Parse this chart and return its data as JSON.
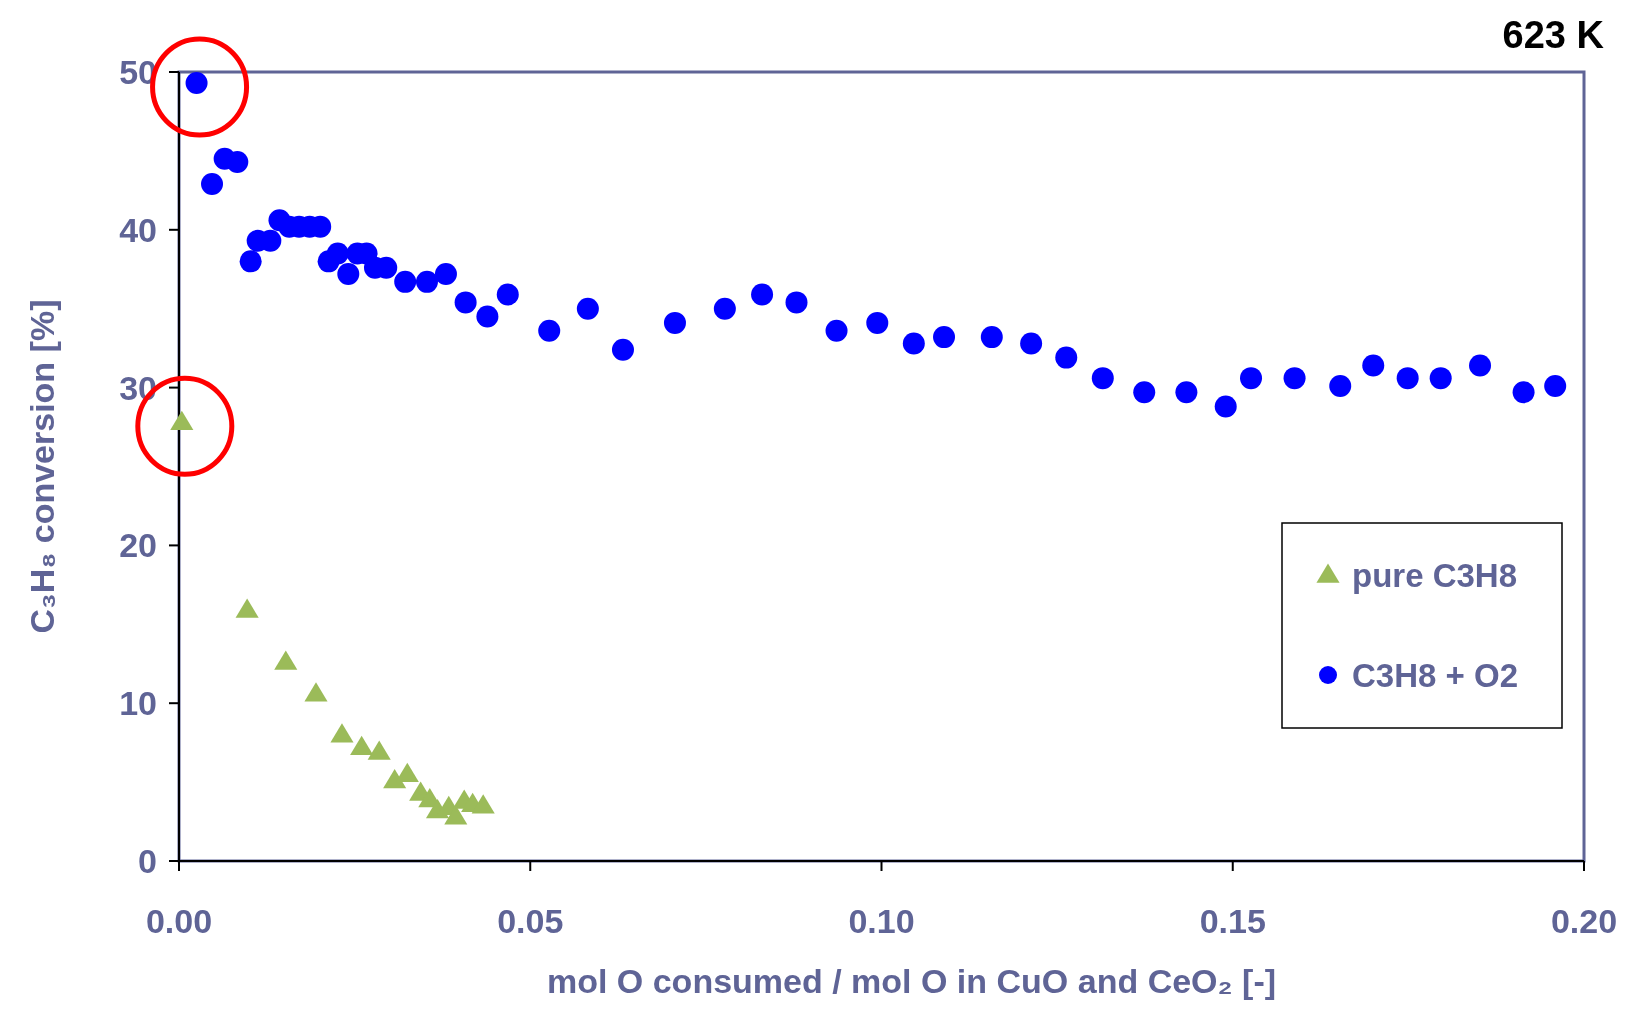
{
  "chart_data": {
    "type": "scatter",
    "title": "623 K",
    "xlabel": "mol O consumed  / mol O in CuO and CeO₂ [-]",
    "ylabel": "C₃H₈ conversion  [%]",
    "xlim": [
      0,
      0.2
    ],
    "xticks": [
      {
        "value": 0,
        "label": "0.00"
      },
      {
        "value": 0.05,
        "label": "0.05"
      },
      {
        "value": 0.1,
        "label": "0.10"
      },
      {
        "value": 0.15,
        "label": "0.15"
      },
      {
        "value": 0.2,
        "label": "0.20"
      }
    ],
    "ylim": [
      0,
      50
    ],
    "yticks": [
      0,
      10,
      20,
      30,
      40,
      50
    ],
    "grid": false,
    "legend": "bottom right",
    "series": [
      {
        "name": "pure C3H8",
        "color": "#9bbb59",
        "marker": "triangle",
        "x": [
          0.0004,
          0.0097,
          0.0152,
          0.0195,
          0.0232,
          0.026,
          0.0285,
          0.0307,
          0.0325,
          0.0344,
          0.0357,
          0.0368,
          0.0384,
          0.0394,
          0.0406,
          0.0418,
          0.0433
        ],
        "values": [
          27.8,
          15.9,
          12.6,
          10.6,
          8.0,
          7.2,
          6.9,
          5.1,
          5.5,
          4.3,
          3.9,
          3.2,
          3.4,
          2.8,
          3.8,
          3.6,
          3.5
        ]
      },
      {
        "name": "C3H8 + O2",
        "color": "#0000ff",
        "marker": "circle",
        "x": [
          0.0025,
          0.0047,
          0.0065,
          0.0083,
          0.0102,
          0.0112,
          0.013,
          0.0143,
          0.0157,
          0.0171,
          0.0186,
          0.0201,
          0.0213,
          0.0226,
          0.0241,
          0.0254,
          0.0267,
          0.0279,
          0.0295,
          0.0322,
          0.0353,
          0.038,
          0.0408,
          0.0439,
          0.0468,
          0.0527,
          0.0582,
          0.0632,
          0.0706,
          0.0777,
          0.083,
          0.0879,
          0.0936,
          0.0994,
          0.1046,
          0.1089,
          0.1157,
          0.1213,
          0.1263,
          0.1315,
          0.1374,
          0.1434,
          0.149,
          0.1526,
          0.1588,
          0.1653,
          0.17,
          0.1749,
          0.1796,
          0.1852,
          0.1914,
          0.1959
        ],
        "values": [
          49.3,
          42.9,
          44.5,
          44.3,
          38.0,
          39.3,
          39.3,
          40.6,
          40.2,
          40.2,
          40.2,
          40.2,
          38.0,
          38.5,
          37.2,
          38.5,
          38.5,
          37.6,
          37.6,
          36.7,
          36.7,
          37.2,
          35.4,
          34.5,
          35.9,
          33.6,
          35.0,
          32.4,
          34.1,
          35.0,
          35.9,
          35.4,
          33.6,
          34.1,
          32.8,
          33.2,
          33.2,
          32.8,
          31.9,
          30.6,
          29.7,
          29.7,
          28.8,
          30.6,
          30.6,
          30.1,
          31.4,
          30.6,
          30.6,
          31.4,
          29.7,
          30.1
        ]
      }
    ]
  }
}
